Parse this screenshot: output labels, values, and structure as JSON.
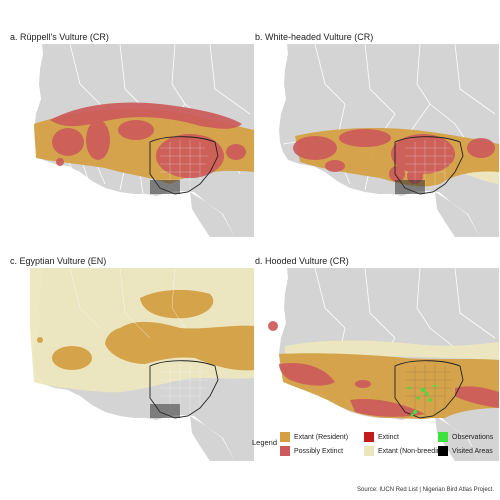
{
  "panels": [
    {
      "id": "a",
      "title": "a. Rüppell's Vulture (CR)"
    },
    {
      "id": "b",
      "title": "b. White-headed Vulture (CR)"
    },
    {
      "id": "c",
      "title": "c. Egyptian Vulture (EN)"
    },
    {
      "id": "d",
      "title": "d. Hooded Vulture (CR)"
    }
  ],
  "legend": {
    "title": "Legend",
    "items": [
      {
        "label": "Extant (Resident)",
        "color": "#d4a043"
      },
      {
        "label": "Extinct",
        "color": "#c41b1b"
      },
      {
        "label": "Observations",
        "color": "#3ee23e"
      },
      {
        "label": "Possibly Extinct",
        "color": "#cd5b5b"
      },
      {
        "label": "Extant (Non-breeding)",
        "color": "#ece6bf"
      },
      {
        "label": "Visited Areas",
        "color": "#000000"
      }
    ]
  },
  "colors": {
    "background": "#ffffff",
    "land": "#d4d4d4",
    "ocean": "#ffffff",
    "border": "#ffffff",
    "nigeria_outline": "#222222"
  },
  "source": "Source: IUCN Red List | Nigerian Bird Atlas Project."
}
